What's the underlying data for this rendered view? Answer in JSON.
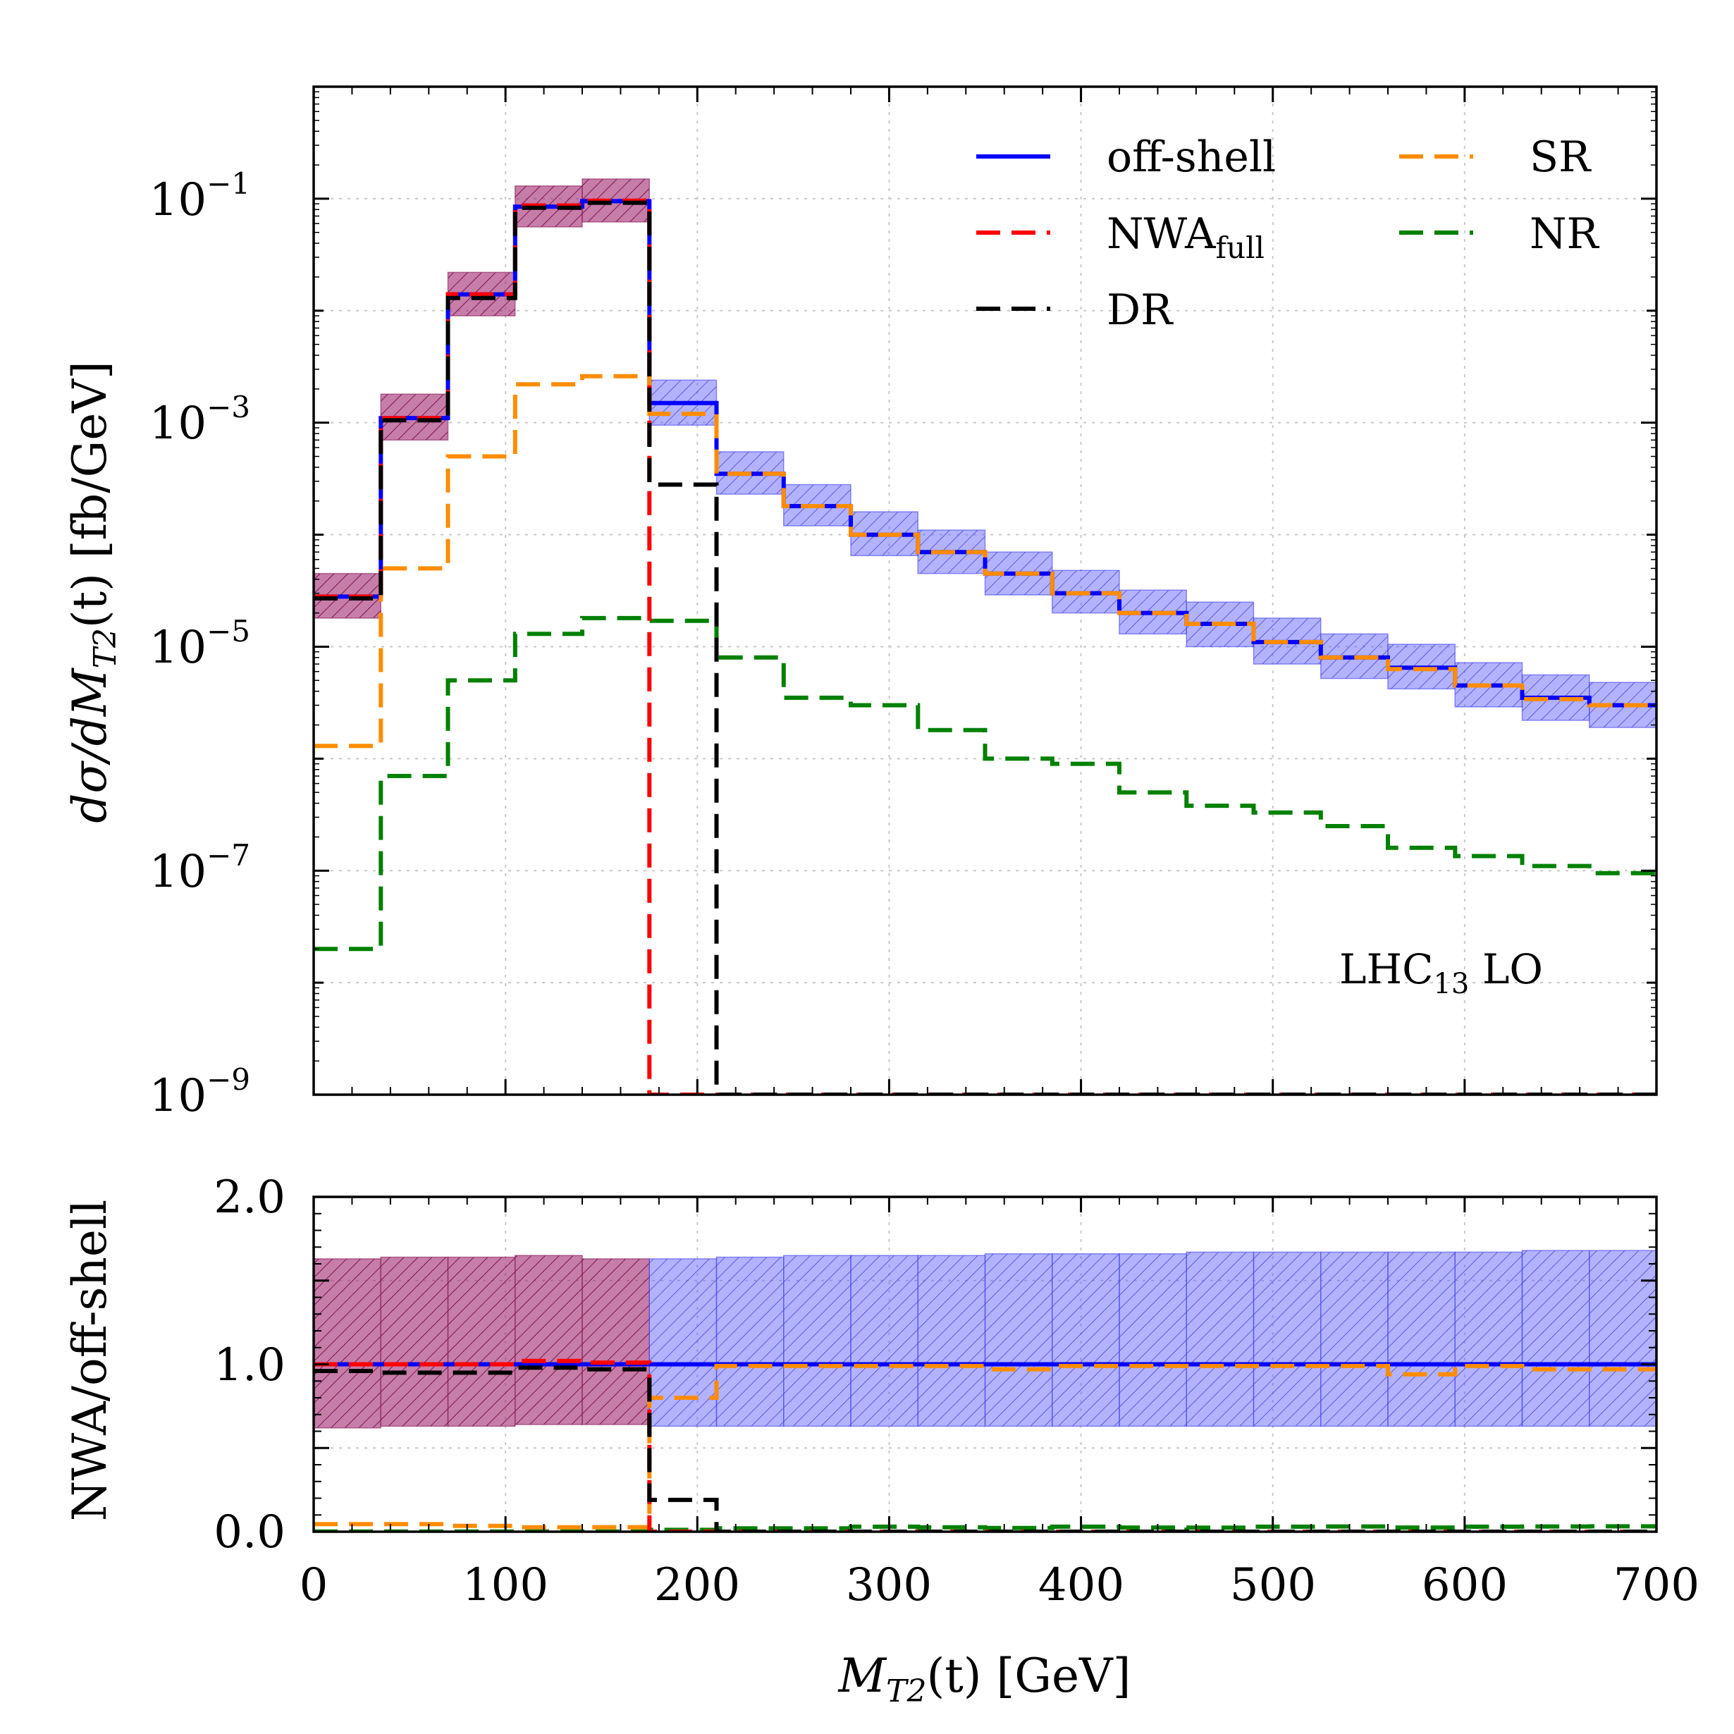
{
  "chart_data": [
    {
      "type": "line",
      "panel": "main",
      "ylabel": "dσ/dM_T2(t) [fb/GeV]",
      "ylabel_parts": {
        "prefix": "dσ/dM",
        "sub": "T2",
        "suffix": "(t) [fb/GeV]"
      },
      "yscale": "log",
      "xlim": [
        0,
        700
      ],
      "ylim": [
        1e-09,
        1
      ],
      "x_ticks": [
        0,
        100,
        200,
        300,
        400,
        500,
        600,
        700
      ],
      "y_ticks": [
        {
          "value": 0.1,
          "base": "10",
          "exp": "−1"
        },
        {
          "value": 0.001,
          "base": "10",
          "exp": "−3"
        },
        {
          "value": 1e-05,
          "base": "10",
          "exp": "−5"
        },
        {
          "value": 1e-07,
          "base": "10",
          "exp": "−7"
        },
        {
          "value": 1e-09,
          "base": "10",
          "exp": "−9"
        }
      ],
      "grid": true,
      "legend_position": "top-right",
      "annotation": {
        "text": "LHC",
        "sub": "13",
        "suffix": " LO"
      },
      "bin_edges": [
        0,
        35,
        70,
        105,
        140,
        175,
        210,
        245,
        280,
        315,
        350,
        385,
        420,
        455,
        490,
        525,
        560,
        595,
        630,
        665,
        700
      ],
      "series": [
        {
          "name": "off-shell",
          "color": "#0000ff",
          "style": "solid",
          "values": [
            2.8e-05,
            0.0011,
            0.014,
            0.085,
            0.095,
            0.0015,
            0.00035,
            0.00018,
            0.0001,
            7e-05,
            4.5e-05,
            3e-05,
            2e-05,
            1.6e-05,
            1.1e-05,
            8e-06,
            6.5e-06,
            4.5e-06,
            3.5e-06,
            3e-06
          ]
        },
        {
          "name": "SR",
          "color": "#ff8c00",
          "style": "dashed",
          "values": [
            1.3e-06,
            5e-05,
            0.0005,
            0.0022,
            0.0026,
            0.0012,
            0.00035,
            0.00018,
            0.0001,
            7e-05,
            4.5e-05,
            3e-05,
            2e-05,
            1.6e-05,
            1.1e-05,
            8e-06,
            6.3e-06,
            4.5e-06,
            3.4e-06,
            3e-06
          ]
        },
        {
          "name": "NWA",
          "sub": "full",
          "color": "#ff0000",
          "style": "dashed",
          "values": [
            2.8e-05,
            0.0011,
            0.014,
            0.087,
            0.096,
            1e-09,
            1e-09,
            1e-09,
            1e-09,
            1e-09,
            1e-09,
            1e-09,
            1e-09,
            1e-09,
            1e-09,
            1e-09,
            1e-09,
            1e-09,
            1e-09,
            1e-09
          ]
        },
        {
          "name": "NR",
          "color": "#008000",
          "style": "dashed",
          "values": [
            2e-08,
            7e-07,
            5e-06,
            1.3e-05,
            1.8e-05,
            1.7e-05,
            8e-06,
            3.5e-06,
            3e-06,
            1.8e-06,
            1e-06,
            9e-07,
            5e-07,
            3.8e-07,
            3.3e-07,
            2.5e-07,
            1.6e-07,
            1.35e-07,
            1.1e-07,
            9.5e-08
          ]
        },
        {
          "name": "DR",
          "color": "#000000",
          "style": "dashed",
          "values": [
            2.7e-05,
            0.00105,
            0.013,
            0.083,
            0.092,
            0.00028,
            1e-09,
            1e-09,
            1e-09,
            1e-09,
            1e-09,
            1e-09,
            1e-09,
            1e-09,
            1e-09,
            1e-09,
            1e-09,
            1e-09,
            1e-09,
            1e-09
          ]
        }
      ],
      "bands": [
        {
          "name": "NWA uncertainty",
          "color": "#a0266e",
          "bins_to": 175,
          "lower": [
            1.8e-05,
            0.0007,
            0.009,
            0.056,
            0.062
          ],
          "upper": [
            4.5e-05,
            0.0018,
            0.022,
            0.13,
            0.15
          ]
        },
        {
          "name": "off-shell uncertainty",
          "color": "#5555ff",
          "bins_from": 175,
          "lower": [
            0.00095,
            0.00023,
            0.00012,
            6.5e-05,
            4.5e-05,
            2.9e-05,
            2e-05,
            1.3e-05,
            1e-05,
            7e-06,
            5.2e-06,
            4.2e-06,
            2.9e-06,
            2.2e-06,
            1.9e-06
          ],
          "upper": [
            0.0024,
            0.00055,
            0.00028,
            0.00016,
            0.00011,
            7e-05,
            4.8e-05,
            3.2e-05,
            2.5e-05,
            1.8e-05,
            1.3e-05,
            1.05e-05,
            7.2e-06,
            5.6e-06,
            4.8e-06
          ]
        }
      ]
    },
    {
      "type": "line",
      "panel": "ratio",
      "ylabel": "NWA/off-shell",
      "xlabel": "M_T2(t) [GeV]",
      "xlabel_parts": {
        "prefix": "M",
        "sub": "T2",
        "suffix": "(t) [GeV]"
      },
      "xlim": [
        0,
        700
      ],
      "ylim": [
        0,
        2
      ],
      "y_ticks": [
        0.0,
        1.0,
        2.0
      ],
      "y_tick_labels": [
        "0.0",
        "1.0",
        "2.0"
      ],
      "x_tick_labels": [
        "0",
        "100",
        "200",
        "300",
        "400",
        "500",
        "600",
        "700"
      ],
      "bin_edges": [
        0,
        35,
        70,
        105,
        140,
        175,
        210,
        245,
        280,
        315,
        350,
        385,
        420,
        455,
        490,
        525,
        560,
        595,
        630,
        665,
        700
      ],
      "series": [
        {
          "name": "off-shell",
          "color": "#0000ff",
          "style": "solid",
          "values": [
            1,
            1,
            1,
            1,
            1,
            1,
            1,
            1,
            1,
            1,
            1,
            1,
            1,
            1,
            1,
            1,
            1,
            1,
            1,
            1
          ]
        },
        {
          "name": "SR",
          "color": "#ff8c00",
          "style": "dashed",
          "values": [
            0.045,
            0.045,
            0.035,
            0.026,
            0.027,
            0.8,
            0.99,
            0.99,
            0.99,
            0.99,
            0.97,
            0.99,
            0.99,
            0.99,
            0.99,
            0.99,
            0.94,
            0.99,
            0.97,
            0.97
          ]
        },
        {
          "name": "NWA",
          "color": "#ff0000",
          "style": "dashed",
          "values": [
            1.0,
            1.0,
            1.0,
            1.02,
            1.01,
            0.0,
            0.0,
            0.0,
            0.0,
            0.0,
            0.0,
            0.0,
            0.0,
            0.0,
            0.0,
            0.0,
            0.0,
            0.0,
            0.0,
            0.0
          ]
        },
        {
          "name": "NR",
          "color": "#008000",
          "style": "dashed",
          "values": [
            0.001,
            0.001,
            0.001,
            0.001,
            0.001,
            0.011,
            0.02,
            0.02,
            0.03,
            0.026,
            0.022,
            0.03,
            0.025,
            0.024,
            0.03,
            0.031,
            0.025,
            0.03,
            0.031,
            0.032
          ]
        },
        {
          "name": "DR",
          "color": "#000000",
          "style": "dashed",
          "values": [
            0.96,
            0.95,
            0.95,
            0.98,
            0.97,
            0.19,
            0.0,
            0.0,
            0.0,
            0.0,
            0.0,
            0.0,
            0.0,
            0.0,
            0.0,
            0.0,
            0.0,
            0.0,
            0.0,
            0.0
          ]
        }
      ],
      "bands": [
        {
          "name": "NWA uncertainty",
          "color": "#a0266e",
          "bins_to": 175,
          "lower": [
            0.62,
            0.63,
            0.63,
            0.64,
            0.64
          ],
          "upper": [
            1.63,
            1.64,
            1.64,
            1.65,
            1.63
          ]
        },
        {
          "name": "off-shell uncertainty",
          "color": "#5555ff",
          "bins_from": 175,
          "lower": [
            0.63,
            0.63,
            0.63,
            0.63,
            0.63,
            0.63,
            0.63,
            0.63,
            0.63,
            0.63,
            0.63,
            0.63,
            0.63,
            0.63,
            0.63
          ],
          "upper": [
            1.63,
            1.64,
            1.65,
            1.65,
            1.65,
            1.66,
            1.66,
            1.66,
            1.67,
            1.67,
            1.67,
            1.67,
            1.67,
            1.68,
            1.68
          ]
        }
      ]
    }
  ],
  "legend": [
    {
      "label": "off-shell",
      "color": "#0000ff",
      "style": "solid"
    },
    {
      "label": "SR",
      "color": "#ff8c00",
      "style": "dashed"
    },
    {
      "label": "NWA",
      "sub": "full",
      "color": "#ff0000",
      "style": "dashed"
    },
    {
      "label": "NR",
      "color": "#008000",
      "style": "dashed"
    },
    {
      "label": "DR",
      "color": "#000000",
      "style": "dashed"
    }
  ]
}
